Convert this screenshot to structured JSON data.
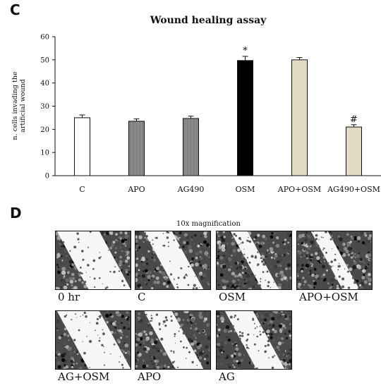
{
  "panel_c": {
    "letter": "C"
  },
  "panel_d": {
    "letter": "D",
    "magnification": "10x magnification"
  },
  "chart_data": {
    "type": "bar",
    "title": "Wound healing assay",
    "ylabel_lines": [
      "n. cells invading the",
      "artificial wound"
    ],
    "xlabel": "",
    "categories": [
      "C",
      "APO",
      "AG490",
      "OSM",
      "APO+OSM",
      "AG490+OSM"
    ],
    "values": [
      25,
      23.5,
      24.7,
      49.7,
      50,
      21
    ],
    "errors": [
      1.2,
      1.0,
      1.0,
      1.8,
      1.0,
      1.0
    ],
    "annotations": [
      "",
      "",
      "",
      "*",
      "",
      "#"
    ],
    "ylim": [
      0,
      60
    ],
    "yticks": [
      0,
      10,
      20,
      30,
      40,
      50,
      60
    ],
    "bar_colors": [
      "#ffffff",
      "#8a8a8a",
      "#8a8a8a",
      "#000000",
      "#e3dcc4",
      "#e3dcc4"
    ],
    "grid": false,
    "legend": "none"
  },
  "images": [
    {
      "label": "0 hr",
      "gap": "wide",
      "seed": 3
    },
    {
      "label": "C",
      "gap": "medium",
      "seed": 7
    },
    {
      "label": "OSM",
      "gap": "narrow",
      "seed": 11
    },
    {
      "label": "APO+OSM",
      "gap": "narrow",
      "seed": 17
    },
    {
      "label": "AG+OSM",
      "gap": "wide",
      "seed": 23
    },
    {
      "label": "APO",
      "gap": "medium",
      "seed": 29
    },
    {
      "label": "AG",
      "gap": "medium",
      "seed": 31
    }
  ]
}
